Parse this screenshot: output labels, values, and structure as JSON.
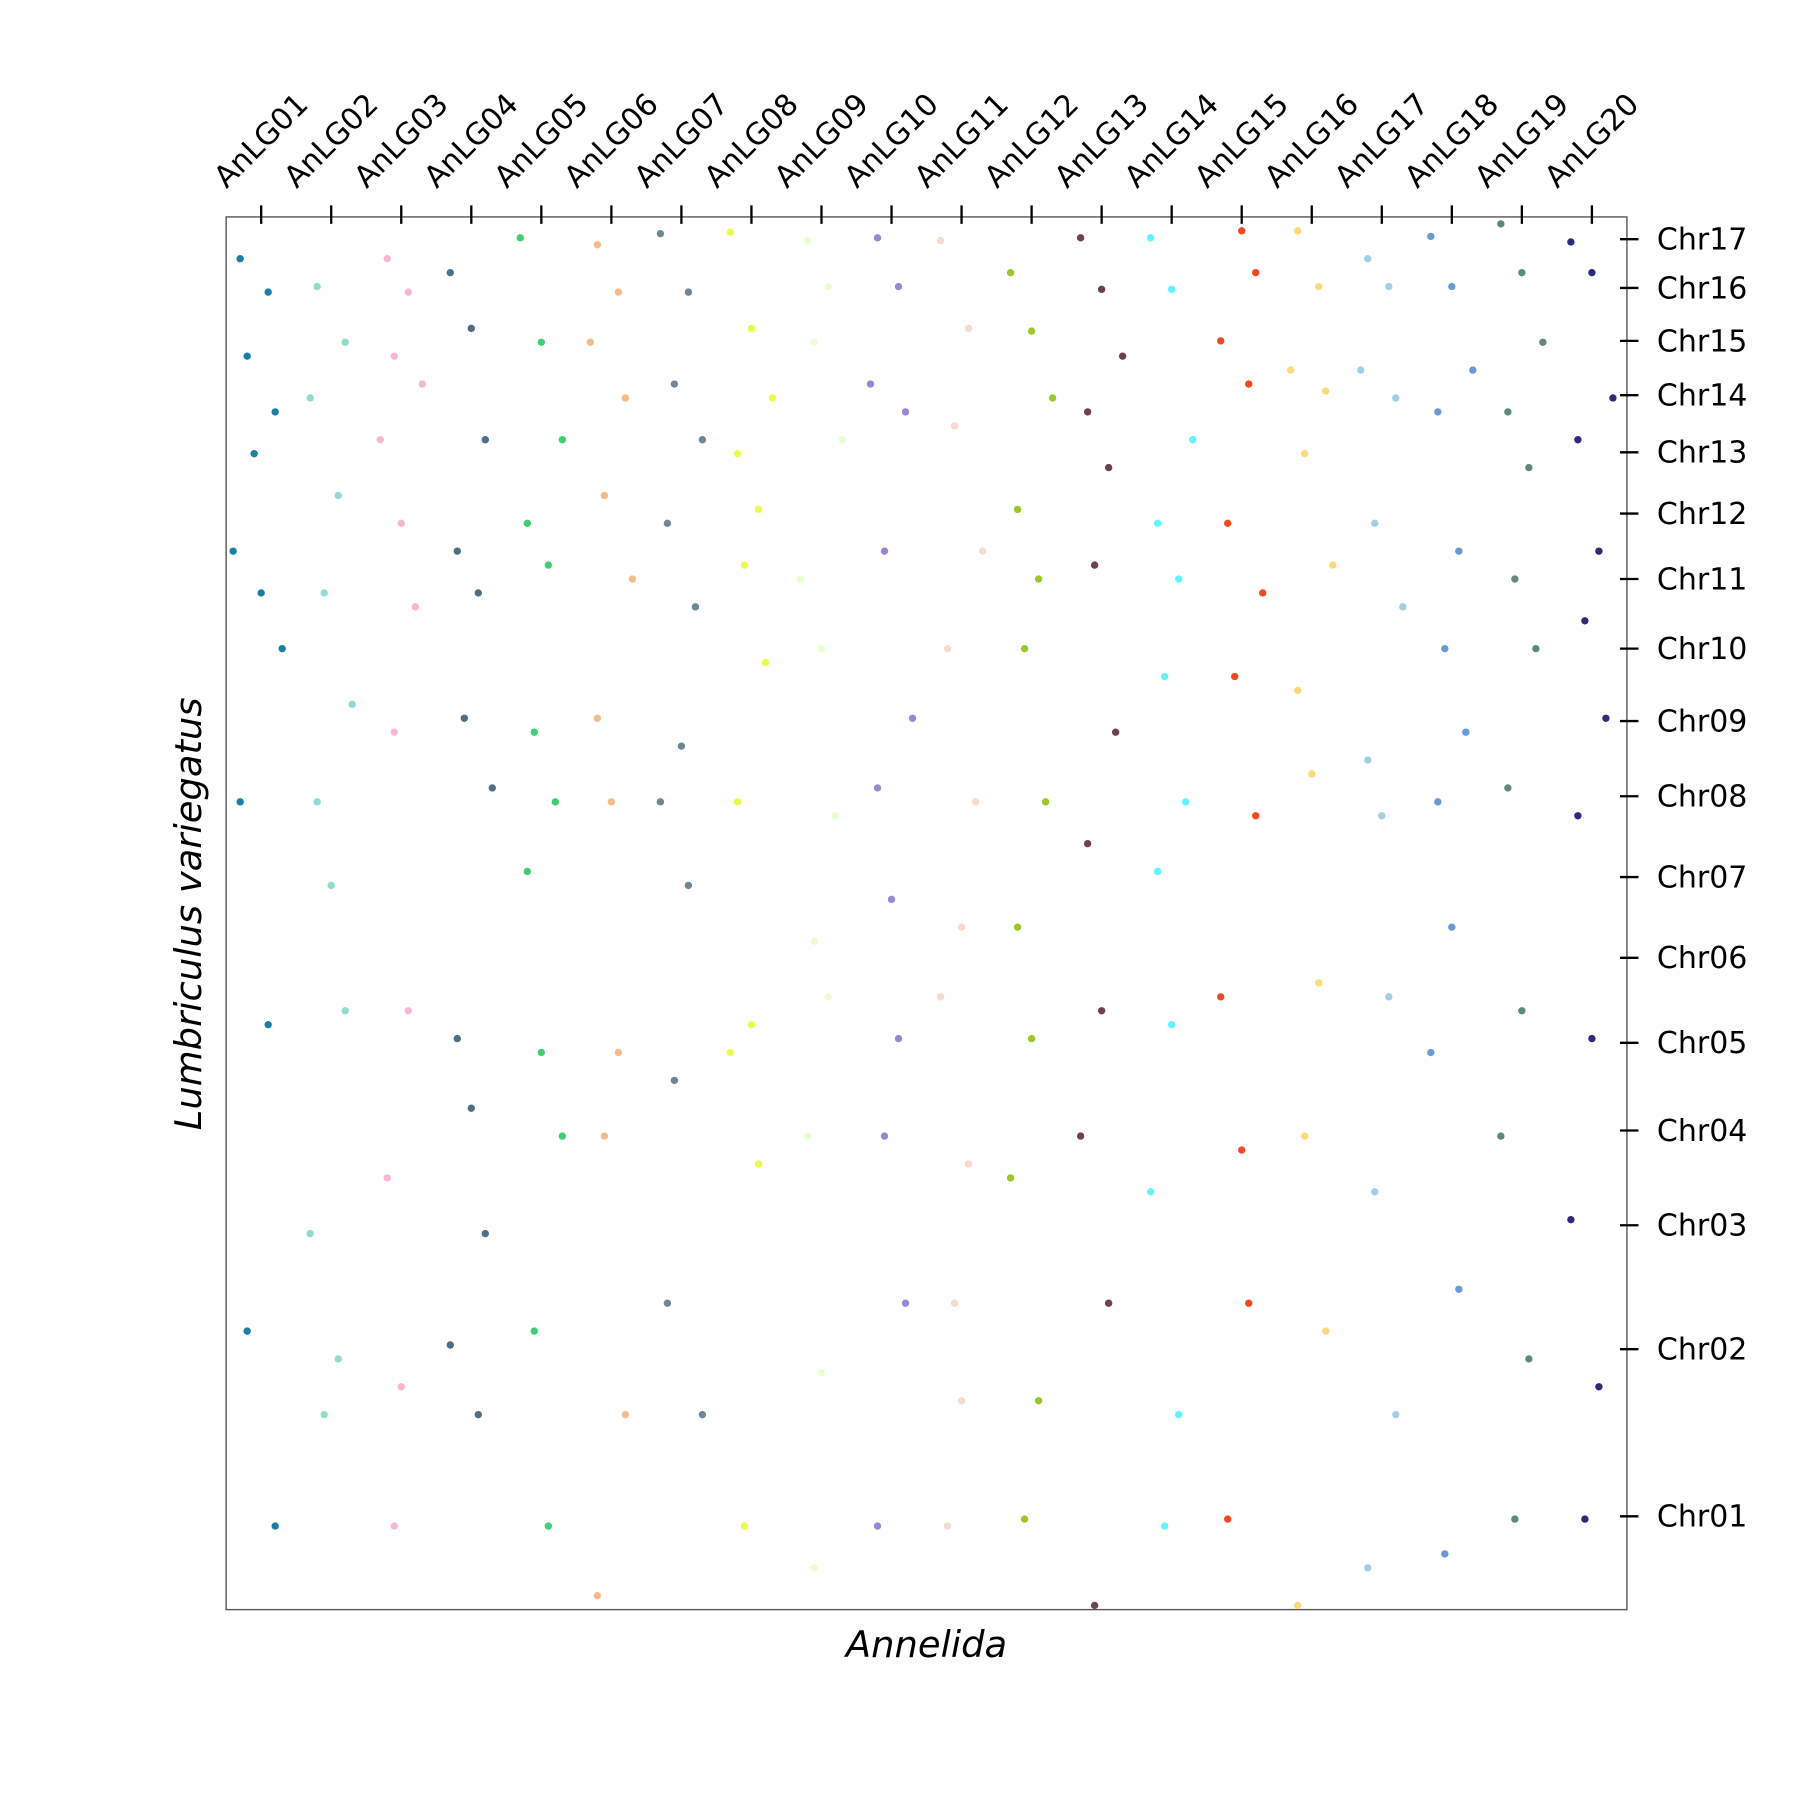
{
  "chart_data": {
    "type": "scatter",
    "xlabel": "Annelida",
    "ylabel": "Lumbriculus variegatus",
    "xlim": [
      0,
      20
    ],
    "ylim": [
      0,
      100
    ],
    "xticks": [
      {
        "value": 0.5,
        "label": "AnLG01"
      },
      {
        "value": 1.5,
        "label": "AnLG02"
      },
      {
        "value": 2.5,
        "label": "AnLG03"
      },
      {
        "value": 3.5,
        "label": "AnLG04"
      },
      {
        "value": 4.5,
        "label": "AnLG05"
      },
      {
        "value": 5.5,
        "label": "AnLG06"
      },
      {
        "value": 6.5,
        "label": "AnLG07"
      },
      {
        "value": 7.5,
        "label": "AnLG08"
      },
      {
        "value": 8.5,
        "label": "AnLG09"
      },
      {
        "value": 9.5,
        "label": "AnLG10"
      },
      {
        "value": 10.5,
        "label": "AnLG11"
      },
      {
        "value": 11.5,
        "label": "AnLG12"
      },
      {
        "value": 12.5,
        "label": "AnLG13"
      },
      {
        "value": 13.5,
        "label": "AnLG14"
      },
      {
        "value": 14.5,
        "label": "AnLG15"
      },
      {
        "value": 15.5,
        "label": "AnLG16"
      },
      {
        "value": 16.5,
        "label": "AnLG17"
      },
      {
        "value": 17.5,
        "label": "AnLG18"
      },
      {
        "value": 18.5,
        "label": "AnLG19"
      },
      {
        "value": 19.5,
        "label": "AnLG20"
      }
    ],
    "yticks": [
      {
        "value": 6.7,
        "label": "Chr01"
      },
      {
        "value": 18.7,
        "label": "Chr02"
      },
      {
        "value": 27.6,
        "label": "Chr03"
      },
      {
        "value": 34.4,
        "label": "Chr04"
      },
      {
        "value": 40.7,
        "label": "Chr05"
      },
      {
        "value": 46.8,
        "label": "Chr06"
      },
      {
        "value": 52.6,
        "label": "Chr07"
      },
      {
        "value": 58.4,
        "label": "Chr08"
      },
      {
        "value": 63.8,
        "label": "Chr09"
      },
      {
        "value": 69.0,
        "label": "Chr10"
      },
      {
        "value": 74.0,
        "label": "Chr11"
      },
      {
        "value": 78.7,
        "label": "Chr12"
      },
      {
        "value": 83.1,
        "label": "Chr13"
      },
      {
        "value": 87.2,
        "label": "Chr14"
      },
      {
        "value": 91.1,
        "label": "Chr15"
      },
      {
        "value": 94.9,
        "label": "Chr16"
      },
      {
        "value": 98.4,
        "label": "Chr17"
      }
    ],
    "series": [
      {
        "color": "#1a7fa6",
        "x": [
          0.2,
          0.6,
          0.3,
          0.7,
          0.4,
          0.1,
          0.5,
          0.8,
          0.2,
          0.6,
          0.3,
          0.7
        ],
        "y": [
          97,
          94.6,
          90,
          86,
          83,
          76,
          73,
          69,
          58,
          42,
          20,
          6
        ]
      },
      {
        "color": "#8fdcd0",
        "x": [
          1.3,
          1.7,
          1.2,
          1.6,
          1.4,
          1.8,
          1.3,
          1.5,
          1.7,
          1.2,
          1.6,
          1.4
        ],
        "y": [
          95,
          91,
          87,
          80,
          73,
          65,
          58,
          52,
          43,
          27,
          18,
          14
        ]
      },
      {
        "color": "#f7b6d2",
        "x": [
          2.3,
          2.6,
          2.4,
          2.8,
          2.2,
          2.5,
          2.7,
          2.4,
          2.6,
          2.3,
          2.5,
          2.4
        ],
        "y": [
          97,
          94.6,
          90,
          88,
          84,
          78,
          72,
          63,
          43,
          31,
          16,
          6
        ]
      },
      {
        "color": "#4e6e88",
        "x": [
          3.2,
          3.5,
          3.7,
          3.3,
          3.6,
          3.4,
          3.8,
          3.3,
          3.5,
          3.7,
          3.2,
          3.6
        ],
        "y": [
          96,
          92,
          84,
          76,
          73,
          64,
          59,
          41,
          36,
          27,
          19,
          14
        ]
      },
      {
        "color": "#3ecf70",
        "x": [
          4.2,
          4.5,
          4.8,
          4.3,
          4.6,
          4.4,
          4.7,
          4.3,
          4.5,
          4.8,
          4.4,
          4.6
        ],
        "y": [
          98.5,
          91,
          84,
          78,
          75,
          63,
          58,
          53,
          40,
          34,
          20,
          6
        ]
      },
      {
        "color": "#f7bb8a",
        "x": [
          5.3,
          5.6,
          5.2,
          5.7,
          5.4,
          5.8,
          5.3,
          5.5,
          5.6,
          5.4,
          5.7,
          5.3
        ],
        "y": [
          98,
          94.6,
          91,
          87,
          80,
          74,
          64,
          58,
          40,
          34,
          14,
          1
        ]
      },
      {
        "color": "#6e8696",
        "x": [
          6.2,
          6.6,
          6.4,
          6.8,
          6.3,
          6.7,
          6.5,
          6.2,
          6.6,
          6.4,
          6.3,
          6.8
        ],
        "y": [
          98.8,
          94.6,
          88,
          84,
          78,
          72,
          62,
          58,
          52,
          38,
          22,
          14
        ]
      },
      {
        "color": "#e8ff4a",
        "x": [
          7.2,
          7.5,
          7.8,
          7.3,
          7.6,
          7.4,
          7.7,
          7.3,
          7.5,
          7.2,
          7.6,
          7.4
        ],
        "y": [
          98.9,
          92,
          87,
          83,
          79,
          75,
          68,
          58,
          42,
          40,
          32,
          6
        ]
      },
      {
        "color": "#eaffcf",
        "x": [
          8.3,
          8.6,
          8.4,
          8.8,
          8.2,
          8.5,
          8.7,
          8.4,
          8.6,
          8.3,
          8.5,
          8.4
        ],
        "y": [
          98.3,
          95,
          91,
          84,
          74,
          69,
          57,
          48,
          44,
          34,
          17,
          3
        ]
      },
      {
        "color": "#9b86d6",
        "x": [
          9.3,
          9.6,
          9.2,
          9.7,
          9.4,
          9.8,
          9.3,
          9.5,
          9.6,
          9.4,
          9.7,
          9.3
        ],
        "y": [
          98.5,
          95,
          88,
          86,
          76,
          64,
          59,
          51,
          41,
          34,
          22,
          6
        ]
      },
      {
        "color": "#fad9cf",
        "x": [
          10.2,
          10.6,
          10.4,
          10.8,
          10.3,
          10.7,
          10.5,
          10.2,
          10.6,
          10.4,
          10.5,
          10.3
        ],
        "y": [
          98.3,
          92,
          85,
          76,
          69,
          58,
          49,
          44,
          32,
          22,
          15,
          6
        ]
      },
      {
        "color": "#9bc828",
        "x": [
          11.2,
          11.5,
          11.8,
          11.3,
          11.6,
          11.4,
          11.7,
          11.3,
          11.5,
          11.2,
          11.6,
          11.4
        ],
        "y": [
          96,
          91.8,
          87,
          79,
          74,
          69,
          58,
          49,
          41,
          31,
          15,
          6.5
        ]
      },
      {
        "color": "#6e4050",
        "x": [
          12.2,
          12.5,
          12.8,
          12.3,
          12.6,
          12.4,
          12.7,
          12.3,
          12.5,
          12.2,
          12.6,
          12.4
        ],
        "y": [
          98.5,
          94.8,
          90,
          86,
          82,
          75,
          63,
          55,
          43,
          34,
          22,
          0.3
        ]
      },
      {
        "color": "#5ff4ff",
        "x": [
          13.2,
          13.5,
          13.8,
          13.3,
          13.6,
          13.4,
          13.7,
          13.3,
          13.5,
          13.2,
          13.6,
          13.4
        ],
        "y": [
          98.5,
          94.8,
          84,
          78,
          74,
          67,
          58,
          53,
          42,
          30,
          14,
          6
        ]
      },
      {
        "color": "#f2491f",
        "x": [
          14.5,
          14.7,
          14.2,
          14.6,
          14.3,
          14.8,
          14.4,
          14.7,
          14.2,
          14.5,
          14.6,
          14.3
        ],
        "y": [
          99,
          96,
          91.1,
          88,
          78,
          73,
          67,
          57,
          44,
          33,
          22,
          6.5
        ]
      },
      {
        "color": "#fcd97a",
        "x": [
          15.3,
          15.6,
          15.2,
          15.7,
          15.4,
          15.8,
          15.3,
          15.5,
          15.6,
          15.4,
          15.7,
          15.3
        ],
        "y": [
          99,
          95,
          89,
          87.5,
          83,
          75,
          66,
          60,
          45,
          34,
          20,
          0.3
        ]
      },
      {
        "color": "#a2cfe6",
        "x": [
          16.3,
          16.6,
          16.2,
          16.7,
          16.4,
          16.8,
          16.3,
          16.5,
          16.6,
          16.4,
          16.7,
          16.3
        ],
        "y": [
          97,
          95,
          89,
          87,
          78,
          72,
          61,
          57,
          44,
          30,
          14,
          3
        ]
      },
      {
        "color": "#6a9ad6",
        "x": [
          17.2,
          17.5,
          17.8,
          17.3,
          17.6,
          17.4,
          17.7,
          17.3,
          17.5,
          17.2,
          17.6,
          17.4
        ],
        "y": [
          98.6,
          95,
          89,
          86,
          76,
          69,
          63,
          58,
          49,
          40,
          23,
          4
        ]
      },
      {
        "color": "#5e8a7a",
        "x": [
          18.2,
          18.5,
          18.8,
          18.3,
          18.6,
          18.4,
          18.7,
          18.3,
          18.5,
          18.2,
          18.6,
          18.4
        ],
        "y": [
          99.5,
          96,
          91,
          86,
          82,
          74,
          69,
          59,
          43,
          34,
          18,
          6.5
        ]
      },
      {
        "color": "#2e2a7a",
        "x": [
          19.2,
          19.5,
          19.8,
          19.3,
          19.6,
          19.4,
          19.7,
          19.3,
          19.5,
          19.2,
          19.6,
          19.4
        ],
        "y": [
          98.2,
          96,
          87,
          84,
          76,
          71,
          64,
          57,
          41,
          28,
          16,
          6.5
        ]
      }
    ]
  }
}
